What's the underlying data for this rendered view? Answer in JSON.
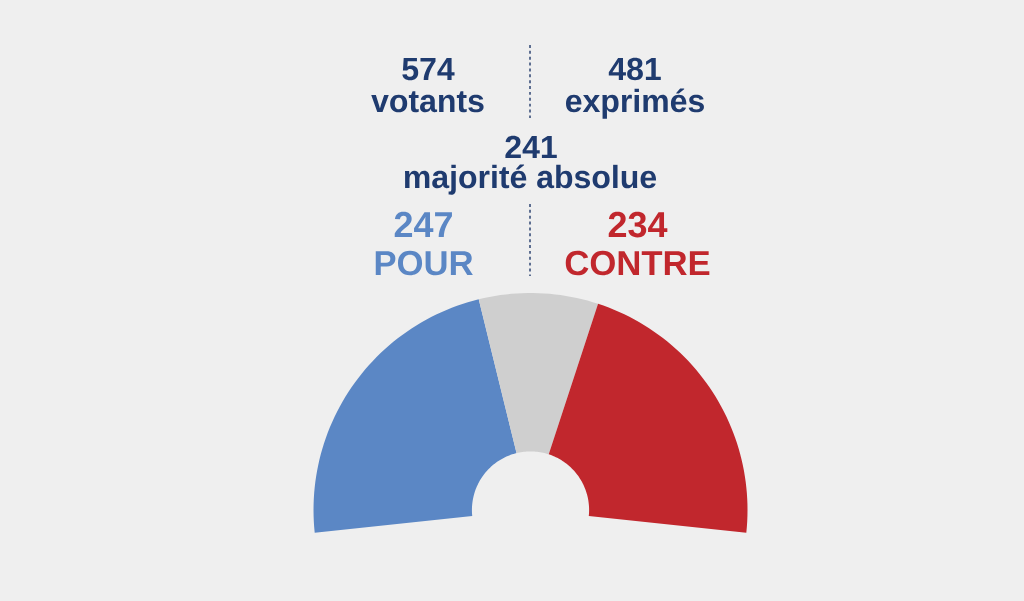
{
  "chart_data": {
    "type": "donut",
    "categories": [
      "POUR",
      null,
      "CONTRE"
    ],
    "values": [
      247,
      96,
      234
    ],
    "colors": [
      "#5b87c5",
      "#cfcfcf",
      "#c1272d"
    ],
    "value_labels": [
      "247",
      null,
      "234"
    ],
    "annotations": [
      "574",
      "votants",
      "481",
      "exprimés",
      "241",
      "majorité absolue"
    ]
  }
}
